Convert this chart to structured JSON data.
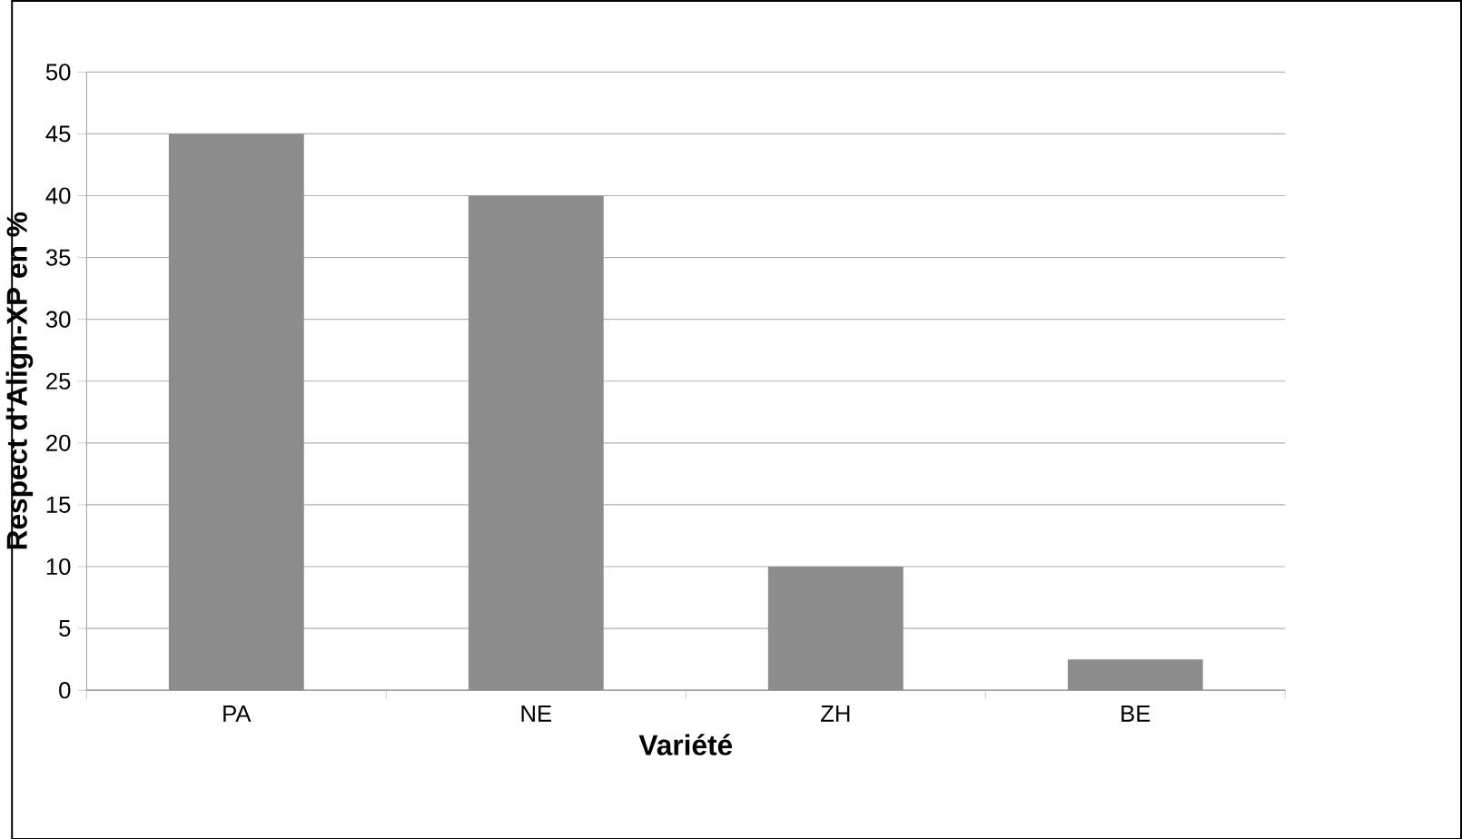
{
  "chart_data": {
    "type": "bar",
    "xlabel": "Variété",
    "ylabel": "Respect d'Align-XP en %",
    "categories": [
      "PA",
      "NE",
      "ZH",
      "BE"
    ],
    "values": [
      45,
      40,
      10,
      2.5
    ],
    "color": "#8c8c8c",
    "ylim": [
      0,
      50
    ],
    "yticks": [
      0,
      5,
      10,
      15,
      20,
      25,
      30,
      35,
      40,
      45,
      50
    ],
    "grid": "y"
  }
}
